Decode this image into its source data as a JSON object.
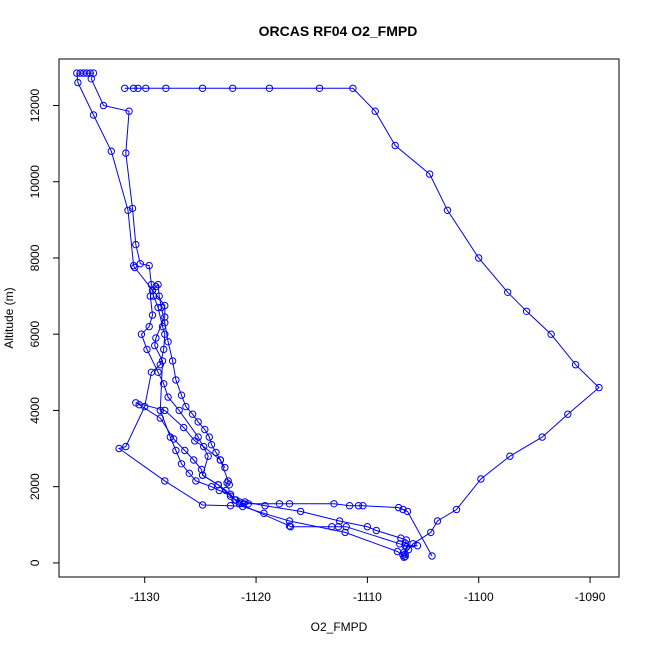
{
  "chart_data": {
    "type": "line",
    "title": "ORCAS RF04 O2_FMPD",
    "xlabel": "O2_FMPD",
    "ylabel": "Altitude (m)",
    "xlim": [
      -1137.7,
      -1087.4
    ],
    "ylim": [
      -370,
      13220
    ],
    "x_ticks": [
      -1130,
      -1120,
      -1110,
      -1100,
      -1090
    ],
    "y_ticks": [
      0,
      2000,
      4000,
      6000,
      8000,
      10000,
      12000
    ],
    "x_tick_labels": [
      "-1130",
      "-1120",
      "-1110",
      "-1100",
      "-1090"
    ],
    "y_tick_labels": [
      "0",
      "2000",
      "4000",
      "6000",
      "8000",
      "10000",
      "12000"
    ],
    "grid": false,
    "legend": "none",
    "series_color": "#0000ff",
    "series": [
      {
        "x": [
          -1106.6,
          -1106.6,
          -1106.5,
          -1105.5,
          -1106.6,
          -1107.1,
          -1111.9,
          -1112.6,
          -1113.2,
          -1116.9,
          -1117.0,
          -1121.5,
          -1123.4,
          -1124.8,
          -1124.3,
          -1125.2,
          -1126.9,
          -1127.9,
          -1128.3,
          -1128.8,
          -1129.8,
          -1130.3,
          -1129.6,
          -1129.3,
          -1129.5,
          -1129.4,
          -1129.6,
          -1130.4,
          -1130.8,
          -1131.1,
          -1131.7,
          -1131.4,
          -1133.7,
          -1134.8,
          -1134.6,
          -1134.9,
          -1135.2,
          -1135.5,
          -1135.8,
          -1136.1,
          -1136.0,
          -1134.6,
          -1133.0,
          -1131.5,
          -1131.0,
          -1130.9,
          -1128.2,
          -1128.2,
          -1129.0,
          -1129.1,
          -1128.4,
          -1128.6,
          -1127.7,
          -1127.2,
          -1126.7,
          -1126.0,
          -1125.4,
          -1124.0,
          -1123.3,
          -1122.3,
          -1121.9,
          -1121.5,
          -1121.1,
          -1120.7,
          -1117.9,
          -1117.0,
          -1113.0,
          -1111.6,
          -1110.8,
          -1110.4,
          -1107.2,
          -1106.8,
          -1106.4,
          -1104.2
        ],
        "y": [
          170,
          230,
          420,
          450,
          450,
          500,
          950,
          950,
          950,
          950,
          970,
          1550,
          2050,
          2300,
          2800,
          3300,
          4000,
          4350,
          4700,
          5000,
          5600,
          6000,
          6200,
          6500,
          7000,
          7300,
          7800,
          7850,
          8350,
          9300,
          10750,
          11850,
          12000,
          12700,
          12850,
          12850,
          12850,
          12850,
          12850,
          12850,
          12600,
          11750,
          10800,
          9250,
          7800,
          7750,
          6750,
          6450,
          5900,
          5700,
          5300,
          4000,
          3300,
          2950,
          2600,
          2350,
          2150,
          2000,
          1900,
          1800,
          1650,
          1600,
          1550,
          1550,
          1550,
          1550,
          1550,
          1500,
          1500,
          1500,
          1450,
          1400,
          1350,
          180
        ]
      },
      {
        "x": [
          -1106.6,
          -1106.5,
          -1107.0,
          -1109.2,
          -1110.0,
          -1112.5,
          -1116.0,
          -1119.2,
          -1121.0,
          -1121.8,
          -1122.3,
          -1122.7,
          -1123.4,
          -1124.8,
          -1124.9,
          -1125.6,
          -1126.4,
          -1127.4,
          -1128.6,
          -1130.5,
          -1130.8,
          -1128.2,
          -1126.5,
          -1125.5,
          -1124.7,
          -1123.2,
          -1122.5,
          -1122.6,
          -1122.4
        ],
        "y": [
          520,
          600,
          650,
          850,
          950,
          1100,
          1350,
          1500,
          1600,
          1650,
          1750,
          1900,
          2050,
          2300,
          2450,
          2700,
          2950,
          3250,
          3800,
          4150,
          4200,
          4000,
          3550,
          3200,
          3050,
          2700,
          2150,
          2100,
          2050
        ]
      },
      {
        "x": [
          -1106.7,
          -1106.8,
          -1107.3,
          -1112.0,
          -1117.0,
          -1119.3,
          -1121.2,
          -1122.3,
          -1124.8,
          -1128.2,
          -1132.3,
          -1131.7,
          -1130.0,
          -1129.4,
          -1128.6,
          -1128.3,
          -1128.2,
          -1128.4,
          -1128.8,
          -1129.2,
          -1129.3,
          -1129.0,
          -1128.8,
          -1128.7,
          -1128.5,
          -1128.2,
          -1127.9,
          -1127.5,
          -1127.2,
          -1126.7,
          -1126.3,
          -1125.7,
          -1125.2,
          -1124.6,
          -1124.2,
          -1124.0,
          -1123.6,
          -1123.2,
          -1122.8
        ],
        "y": [
          150,
          200,
          300,
          800,
          1100,
          1300,
          1480,
          1500,
          1520,
          2150,
          3000,
          3050,
          4100,
          5000,
          5200,
          5600,
          6000,
          6200,
          6700,
          7000,
          7150,
          7250,
          7300,
          7000,
          6700,
          6300,
          5800,
          5300,
          4800,
          4400,
          4100,
          3900,
          3700,
          3500,
          3300,
          3100,
          2900,
          2700,
          2500
        ]
      },
      {
        "x": [
          -1106.7,
          -1106.3,
          -1105.9,
          -1104.3,
          -1103.7,
          -1102.0,
          -1099.8,
          -1097.2,
          -1094.3,
          -1092.0,
          -1089.2,
          -1091.3,
          -1093.5,
          -1095.7,
          -1097.4,
          -1100.0,
          -1102.8,
          -1104.4,
          -1107.5,
          -1109.3,
          -1111.3,
          -1114.3,
          -1118.8,
          -1122.1,
          -1124.8,
          -1128.1,
          -1129.9,
          -1130.6,
          -1131.0,
          -1131.8
        ],
        "y": [
          280,
          350,
          500,
          800,
          1100,
          1400,
          2200,
          2800,
          3300,
          3900,
          4600,
          5200,
          6000,
          6600,
          7100,
          8000,
          9250,
          10200,
          10950,
          11850,
          12450,
          12450,
          12450,
          12450,
          12450,
          12450,
          12450,
          12450,
          12450,
          12450
        ]
      }
    ]
  }
}
